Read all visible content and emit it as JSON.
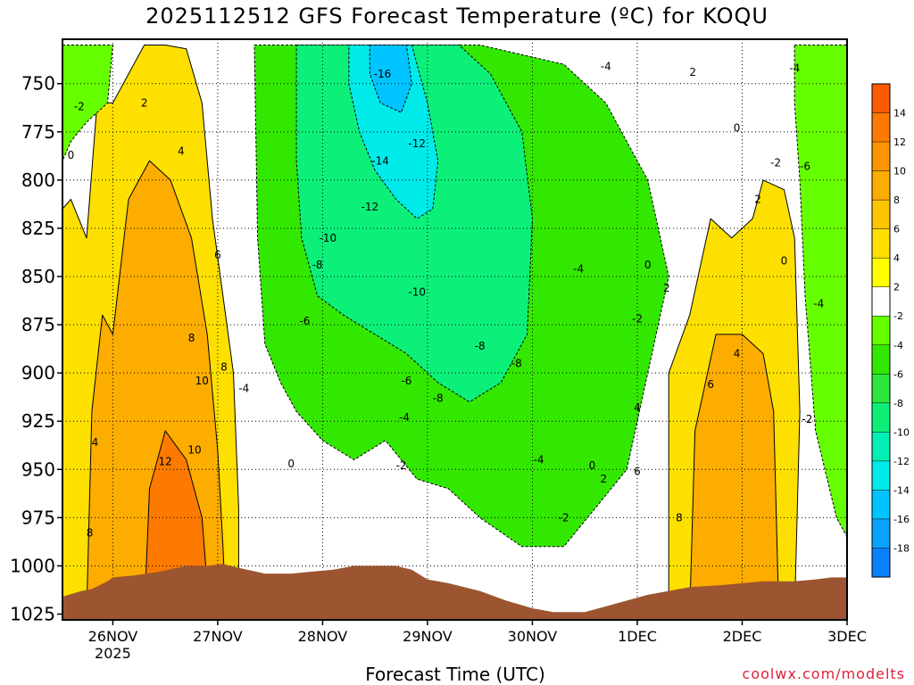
{
  "title": "2025112512 GFS Forecast Temperature (ºC) for KOQU",
  "credit": "coolwx.com/modelts",
  "chart_data": {
    "type": "heatmap",
    "title": "2025112512 GFS Forecast Temperature (ºC) for KOQU",
    "xlabel": "Forecast Time (UTC)",
    "ylabel": "",
    "x_ticks": [
      {
        "label": "26NOV",
        "sub": "2025"
      },
      {
        "label": "27NOV",
        "sub": ""
      },
      {
        "label": "28NOV",
        "sub": ""
      },
      {
        "label": "29NOV",
        "sub": ""
      },
      {
        "label": "30NOV",
        "sub": ""
      },
      {
        "label": "1DEC",
        "sub": ""
      },
      {
        "label": "2DEC",
        "sub": ""
      },
      {
        "label": "3DEC",
        "sub": ""
      }
    ],
    "x_tick_days": [
      1,
      2,
      3,
      4,
      5,
      6,
      7,
      8
    ],
    "xlim_days": [
      0.52,
      8.0
    ],
    "y_ticks": [
      750,
      775,
      800,
      825,
      850,
      875,
      900,
      925,
      950,
      975,
      1000,
      1025
    ],
    "ylim_hpa": [
      727,
      1028
    ],
    "colorbar": {
      "labels": [
        14,
        12,
        10,
        8,
        6,
        4,
        2,
        -2,
        -4,
        -6,
        -8,
        -10,
        -12,
        -14,
        -16,
        -18
      ],
      "bins": [
        {
          "lo": 16,
          "hi": 14,
          "color": "#fc5a00"
        },
        {
          "lo": 14,
          "hi": 12,
          "color": "#fd7a00"
        },
        {
          "lo": 12,
          "hi": 10,
          "color": "#fc9600"
        },
        {
          "lo": 10,
          "hi": 8,
          "color": "#fdac00"
        },
        {
          "lo": 8,
          "hi": 6,
          "color": "#fdc500"
        },
        {
          "lo": 6,
          "hi": 4,
          "color": "#fde000"
        },
        {
          "lo": 4,
          "hi": 2,
          "color": "#ffff00"
        },
        {
          "lo": 2,
          "hi": -2,
          "color": "#ffffff"
        },
        {
          "lo": -2,
          "hi": -4,
          "color": "#66ff00"
        },
        {
          "lo": -4,
          "hi": -6,
          "color": "#33e800"
        },
        {
          "lo": -6,
          "hi": -8,
          "color": "#2ee63c"
        },
        {
          "lo": -8,
          "hi": -10,
          "color": "#0cf07a"
        },
        {
          "lo": -10,
          "hi": -12,
          "color": "#00f0b4"
        },
        {
          "lo": -12,
          "hi": -14,
          "color": "#00eaea"
        },
        {
          "lo": -14,
          "hi": -16,
          "color": "#00c4ff"
        },
        {
          "lo": -16,
          "hi": -18,
          "color": "#0aa2ff"
        },
        {
          "lo": -18,
          "hi": -20,
          "color": "#0a80ff"
        }
      ]
    },
    "terrain_color": "#9c5530",
    "freezing_line_color": "#b0005e",
    "grid": true,
    "legend": "right",
    "regions": [
      {
        "name": "warm-layer-26-27nov",
        "t": 4,
        "poly": [
          [
            0.52,
            1025
          ],
          [
            0.52,
            815
          ],
          [
            0.6,
            810
          ],
          [
            0.75,
            830
          ],
          [
            0.85,
            760
          ],
          [
            1.0,
            760
          ],
          [
            1.2,
            740
          ],
          [
            1.3,
            730
          ],
          [
            1.5,
            730
          ],
          [
            1.7,
            732
          ],
          [
            1.85,
            760
          ],
          [
            1.95,
            820
          ],
          [
            2.05,
            860
          ],
          [
            2.15,
            900
          ],
          [
            2.2,
            970
          ],
          [
            2.2,
            1025
          ]
        ]
      },
      {
        "name": "warm-core-27nov",
        "t": 8,
        "poly": [
          [
            0.75,
            1025
          ],
          [
            0.8,
            920
          ],
          [
            0.9,
            870
          ],
          [
            1.0,
            880
          ],
          [
            1.15,
            810
          ],
          [
            1.35,
            790
          ],
          [
            1.55,
            800
          ],
          [
            1.75,
            830
          ],
          [
            1.9,
            880
          ],
          [
            2.0,
            940
          ],
          [
            2.05,
            990
          ],
          [
            2.08,
            1025
          ]
        ]
      },
      {
        "name": "hot-core-27nov",
        "t": 12,
        "poly": [
          [
            1.3,
            1025
          ],
          [
            1.35,
            960
          ],
          [
            1.5,
            930
          ],
          [
            1.7,
            945
          ],
          [
            1.85,
            975
          ],
          [
            1.9,
            1010
          ],
          [
            1.9,
            1025
          ]
        ]
      },
      {
        "name": "warm-layer-1-2dec",
        "t": 4,
        "poly": [
          [
            6.3,
            1025
          ],
          [
            6.3,
            900
          ],
          [
            6.5,
            870
          ],
          [
            6.7,
            820
          ],
          [
            6.9,
            830
          ],
          [
            7.1,
            820
          ],
          [
            7.2,
            800
          ],
          [
            7.4,
            805
          ],
          [
            7.5,
            830
          ],
          [
            7.55,
            920
          ],
          [
            7.5,
            1025
          ]
        ]
      },
      {
        "name": "warm-core-1-2dec",
        "t": 8,
        "poly": [
          [
            6.5,
            1025
          ],
          [
            6.55,
            930
          ],
          [
            6.75,
            880
          ],
          [
            7.0,
            880
          ],
          [
            7.2,
            890
          ],
          [
            7.3,
            920
          ],
          [
            7.35,
            1025
          ]
        ]
      },
      {
        "name": "cold-airmass",
        "t": -6,
        "poly": [
          [
            2.35,
            730
          ],
          [
            4.5,
            730
          ],
          [
            5.3,
            740
          ],
          [
            5.7,
            760
          ],
          [
            6.1,
            800
          ],
          [
            6.3,
            850
          ],
          [
            6.1,
            900
          ],
          [
            5.9,
            950
          ],
          [
            5.6,
            970
          ],
          [
            5.3,
            990
          ],
          [
            4.9,
            990
          ],
          [
            4.5,
            975
          ],
          [
            4.2,
            960
          ],
          [
            3.9,
            955
          ],
          [
            3.6,
            935
          ],
          [
            3.3,
            945
          ],
          [
            3.0,
            935
          ],
          [
            2.75,
            920
          ],
          [
            2.6,
            905
          ],
          [
            2.45,
            885
          ],
          [
            2.38,
            830
          ]
        ]
      },
      {
        "name": "colder-core",
        "t": -10,
        "poly": [
          [
            2.75,
            730
          ],
          [
            4.3,
            730
          ],
          [
            4.6,
            745
          ],
          [
            4.9,
            775
          ],
          [
            5.0,
            820
          ],
          [
            4.95,
            880
          ],
          [
            4.7,
            905
          ],
          [
            4.4,
            915
          ],
          [
            4.1,
            905
          ],
          [
            3.8,
            890
          ],
          [
            3.5,
            880
          ],
          [
            3.2,
            870
          ],
          [
            2.95,
            860
          ],
          [
            2.8,
            830
          ],
          [
            2.75,
            790
          ]
        ]
      },
      {
        "name": "coldest-core",
        "t": -14,
        "poly": [
          [
            3.25,
            730
          ],
          [
            3.85,
            730
          ],
          [
            4.0,
            760
          ],
          [
            4.1,
            790
          ],
          [
            4.05,
            815
          ],
          [
            3.9,
            820
          ],
          [
            3.7,
            810
          ],
          [
            3.5,
            795
          ],
          [
            3.35,
            775
          ],
          [
            3.25,
            750
          ]
        ]
      },
      {
        "name": "core-16",
        "t": -16,
        "poly": [
          [
            3.45,
            730
          ],
          [
            3.8,
            730
          ],
          [
            3.85,
            750
          ],
          [
            3.75,
            765
          ],
          [
            3.55,
            760
          ],
          [
            3.45,
            745
          ]
        ]
      },
      {
        "name": "cold-upper-2-3dec",
        "t": -4,
        "poly": [
          [
            7.5,
            730
          ],
          [
            8.0,
            730
          ],
          [
            8.0,
            985
          ],
          [
            7.9,
            975
          ],
          [
            7.7,
            930
          ],
          [
            7.6,
            860
          ],
          [
            7.55,
            800
          ],
          [
            7.5,
            760
          ]
        ]
      },
      {
        "name": "cold-upper-left",
        "t": -4,
        "poly": [
          [
            0.52,
            730
          ],
          [
            1.0,
            730
          ],
          [
            0.95,
            760
          ],
          [
            0.75,
            770
          ],
          [
            0.6,
            780
          ],
          [
            0.52,
            790
          ]
        ]
      }
    ],
    "contour_labels": [
      {
        "t": "-2",
        "x": 0.68,
        "y": 762
      },
      {
        "t": "0",
        "x": 0.6,
        "y": 787
      },
      {
        "t": "2",
        "x": 1.3,
        "y": 760
      },
      {
        "t": "4",
        "x": 1.65,
        "y": 785
      },
      {
        "t": "6",
        "x": 2.0,
        "y": 839
      },
      {
        "t": "8",
        "x": 1.75,
        "y": 882
      },
      {
        "t": "8",
        "x": 2.06,
        "y": 897
      },
      {
        "t": "10",
        "x": 1.85,
        "y": 904
      },
      {
        "t": "10",
        "x": 1.78,
        "y": 940
      },
      {
        "t": "12",
        "x": 1.5,
        "y": 946
      },
      {
        "t": "4",
        "x": 0.83,
        "y": 936
      },
      {
        "t": "8",
        "x": 0.78,
        "y": 983
      },
      {
        "t": "-16",
        "x": 3.57,
        "y": 745
      },
      {
        "t": "-14",
        "x": 3.55,
        "y": 790
      },
      {
        "t": "-12",
        "x": 3.9,
        "y": 781
      },
      {
        "t": "-12",
        "x": 3.45,
        "y": 814
      },
      {
        "t": "-10",
        "x": 3.05,
        "y": 830
      },
      {
        "t": "-8",
        "x": 2.95,
        "y": 844
      },
      {
        "t": "-10",
        "x": 3.9,
        "y": 858
      },
      {
        "t": "-6",
        "x": 2.83,
        "y": 873
      },
      {
        "t": "-6",
        "x": 3.8,
        "y": 904
      },
      {
        "t": "-8",
        "x": 4.5,
        "y": 886
      },
      {
        "t": "-8",
        "x": 4.1,
        "y": 913
      },
      {
        "t": "-4",
        "x": 2.25,
        "y": 908
      },
      {
        "t": "-4",
        "x": 3.78,
        "y": 923
      },
      {
        "t": "0",
        "x": 2.7,
        "y": 947
      },
      {
        "t": "-2",
        "x": 3.75,
        "y": 948
      },
      {
        "t": "-4",
        "x": 5.06,
        "y": 945
      },
      {
        "t": "-4",
        "x": 5.44,
        "y": 846
      },
      {
        "t": "-2",
        "x": 5.3,
        "y": 975
      },
      {
        "t": "-4",
        "x": 5.7,
        "y": 741
      },
      {
        "t": "2",
        "x": 6.53,
        "y": 744
      },
      {
        "t": "-4",
        "x": 7.5,
        "y": 742
      },
      {
        "t": "0",
        "x": 6.95,
        "y": 773
      },
      {
        "t": "-2",
        "x": 7.32,
        "y": 791
      },
      {
        "t": "-6",
        "x": 7.6,
        "y": 793
      },
      {
        "t": "2",
        "x": 7.15,
        "y": 810
      },
      {
        "t": "0",
        "x": 6.1,
        "y": 844
      },
      {
        "t": "0",
        "x": 7.4,
        "y": 842
      },
      {
        "t": "2",
        "x": 6.28,
        "y": 856
      },
      {
        "t": "-2",
        "x": 6.0,
        "y": 872
      },
      {
        "t": "-4",
        "x": 7.73,
        "y": 864
      },
      {
        "t": "-8",
        "x": 4.85,
        "y": 895
      },
      {
        "t": "4",
        "x": 6.95,
        "y": 890
      },
      {
        "t": "6",
        "x": 6.7,
        "y": 906
      },
      {
        "t": "4",
        "x": 6.0,
        "y": 918
      },
      {
        "t": "6",
        "x": 6.0,
        "y": 951
      },
      {
        "t": "0",
        "x": 5.57,
        "y": 948
      },
      {
        "t": "2",
        "x": 5.68,
        "y": 955
      },
      {
        "t": "8",
        "x": 6.4,
        "y": 975
      },
      {
        "t": "-2",
        "x": 7.62,
        "y": 924
      }
    ],
    "terrain_surface": [
      [
        0.52,
        1016
      ],
      [
        0.7,
        1013
      ],
      [
        0.8,
        1012
      ],
      [
        0.95,
        1008
      ],
      [
        1.0,
        1006
      ],
      [
        1.2,
        1005
      ],
      [
        1.45,
        1003
      ],
      [
        1.7,
        1000
      ],
      [
        1.9,
        1000
      ],
      [
        2.05,
        999
      ],
      [
        2.2,
        1001
      ],
      [
        2.45,
        1004
      ],
      [
        2.7,
        1004
      ],
      [
        2.9,
        1003
      ],
      [
        3.1,
        1002
      ],
      [
        3.3,
        1000
      ],
      [
        3.5,
        1000
      ],
      [
        3.7,
        1000
      ],
      [
        3.85,
        1002
      ],
      [
        4.0,
        1007
      ],
      [
        4.2,
        1009
      ],
      [
        4.5,
        1013
      ],
      [
        4.75,
        1018
      ],
      [
        5.0,
        1022
      ],
      [
        5.2,
        1024
      ],
      [
        5.5,
        1024
      ],
      [
        5.7,
        1021
      ],
      [
        5.9,
        1018
      ],
      [
        6.1,
        1015
      ],
      [
        6.3,
        1013
      ],
      [
        6.5,
        1011
      ],
      [
        6.8,
        1010
      ],
      [
        7.2,
        1008
      ],
      [
        7.5,
        1008
      ],
      [
        7.7,
        1007
      ],
      [
        7.85,
        1006
      ],
      [
        8.0,
        1006
      ]
    ]
  }
}
